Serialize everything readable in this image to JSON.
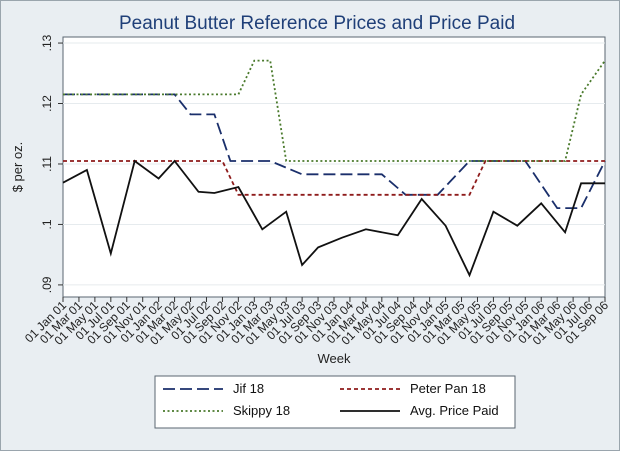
{
  "chart_data": {
    "type": "line",
    "title": "Peanut Butter Reference Prices and Price Paid",
    "xlabel": "Week",
    "ylabel": "$ per oz.",
    "ylim": [
      0.088,
      0.131
    ],
    "yticks": [
      0.09,
      0.1,
      0.11,
      0.12,
      0.13
    ],
    "ytick_labels": [
      ".09",
      ".1",
      ".11",
      ".12",
      ".13"
    ],
    "xticks": [
      0,
      2,
      4,
      6,
      8,
      10,
      12,
      14,
      16,
      18,
      20,
      22,
      24,
      26,
      28,
      30,
      32,
      34,
      36,
      38,
      40,
      42,
      44,
      46,
      48,
      50,
      52,
      54,
      56,
      58,
      60,
      62,
      64,
      66,
      68
    ],
    "xtick_labels": [
      "01 Jan 01",
      "01 Mar 01",
      "01 May 01",
      "01 Jul 01",
      "01 Sep 01",
      "01 Nov 01",
      "01 Jan 02",
      "01 Mar 02",
      "01 May 02",
      "01 Jul 02",
      "01 Sep 02",
      "01 Nov 02",
      "01 Jan 03",
      "01 Mar 03",
      "01 May 03",
      "01 Jul 03",
      "01 Sep 03",
      "01 Nov 03",
      "01 Jan 04",
      "01 Mar 04",
      "01 May 04",
      "01 Jul 04",
      "01 Sep 04",
      "01 Nov 04",
      "01 Jan 05",
      "01 Mar 05",
      "01 May 05",
      "01 Jul 05",
      "01 Sep 05",
      "01 Nov 05",
      "01 Jan 06",
      "01 Mar 06",
      "01 May 06",
      "01 Jul 06",
      "01 Sep 06"
    ],
    "xlim": [
      0,
      68
    ],
    "legend_position": "bottom",
    "series": [
      {
        "name": "Jif 18",
        "style": "longdash",
        "color": "#1a2f6b",
        "x": [
          0,
          11,
          14,
          16,
          18,
          19,
          21,
          24,
          26,
          30,
          32,
          40,
          43,
          47,
          51,
          54,
          56,
          58,
          62,
          65,
          68
        ],
        "y": [
          0.1215,
          0.1215,
          0.1215,
          0.1182,
          0.1182,
          0.1182,
          0.1105,
          0.1105,
          0.1105,
          0.1083,
          0.1083,
          0.1083,
          0.1049,
          0.1049,
          0.1105,
          0.1105,
          0.1105,
          0.1105,
          0.1027,
          0.1027,
          0.1105
        ]
      },
      {
        "name": "Peter Pan 18",
        "style": "shortdash",
        "color": "#8e1b1b",
        "x": [
          0,
          20,
          22,
          26,
          28,
          33,
          39,
          43,
          48,
          51,
          53,
          55,
          68
        ],
        "y": [
          0.1105,
          0.1105,
          0.1049,
          0.1049,
          0.1049,
          0.1049,
          0.1049,
          0.1049,
          0.1049,
          0.1049,
          0.1105,
          0.1105,
          0.1105
        ]
      },
      {
        "name": "Skippy 18",
        "style": "dot",
        "color": "#4a7a2c",
        "x": [
          0,
          20,
          22,
          24,
          26,
          28,
          30,
          35,
          40,
          45,
          50,
          55,
          61,
          63,
          65,
          68
        ],
        "y": [
          0.1215,
          0.1215,
          0.1215,
          0.1271,
          0.1271,
          0.1105,
          0.1105,
          0.1105,
          0.1105,
          0.1105,
          0.1105,
          0.1105,
          0.1105,
          0.1105,
          0.1215,
          0.1271
        ]
      },
      {
        "name": "Avg. Price Paid",
        "style": "solid",
        "color": "#111111",
        "x": [
          0,
          3,
          6,
          9,
          12,
          14,
          17,
          19,
          22,
          25,
          28,
          30,
          32,
          35,
          38,
          42,
          45,
          48,
          51,
          54,
          57,
          60,
          63,
          65,
          68
        ],
        "y": [
          0.1069,
          0.109,
          0.0952,
          0.1105,
          0.1076,
          0.1105,
          0.1054,
          0.1052,
          0.1062,
          0.0992,
          0.1021,
          0.0933,
          0.0962,
          0.0978,
          0.0992,
          0.0982,
          0.1042,
          0.0998,
          0.0916,
          0.1021,
          0.0998,
          0.1035,
          0.0987,
          0.1068,
          0.1068
        ]
      }
    ]
  }
}
